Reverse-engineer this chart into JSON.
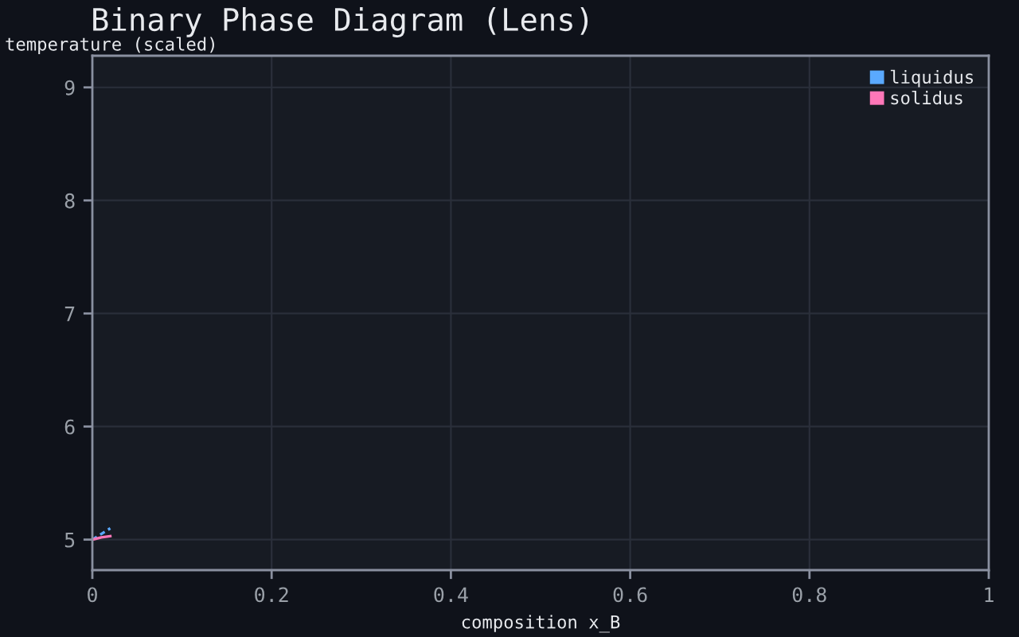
{
  "chart_data": {
    "type": "line",
    "title": "Binary Phase Diagram (Lens)",
    "xlabel": "composition x_B",
    "ylabel": "temperature (scaled)",
    "series": [
      {
        "name": "liquidus",
        "color": "#5aa9ff",
        "x": [
          0,
          0.01,
          0.02
        ],
        "values": [
          5,
          5.05,
          5.1
        ],
        "line_style": "dashed"
      },
      {
        "name": "solidus",
        "color": "#ff77b8",
        "x": [
          0,
          0.01,
          0.02
        ],
        "values": [
          5,
          5.02,
          5.03
        ],
        "line_style": "solid"
      }
    ],
    "xlim": [
      0,
      1
    ],
    "xticks": [
      0,
      0.2,
      0.4,
      0.6,
      0.8,
      1
    ],
    "ylim": [
      4.73,
      9.28
    ],
    "yticks": [
      5,
      6,
      7,
      8,
      9
    ],
    "grid": true,
    "legend": "top right",
    "marker": "none"
  }
}
